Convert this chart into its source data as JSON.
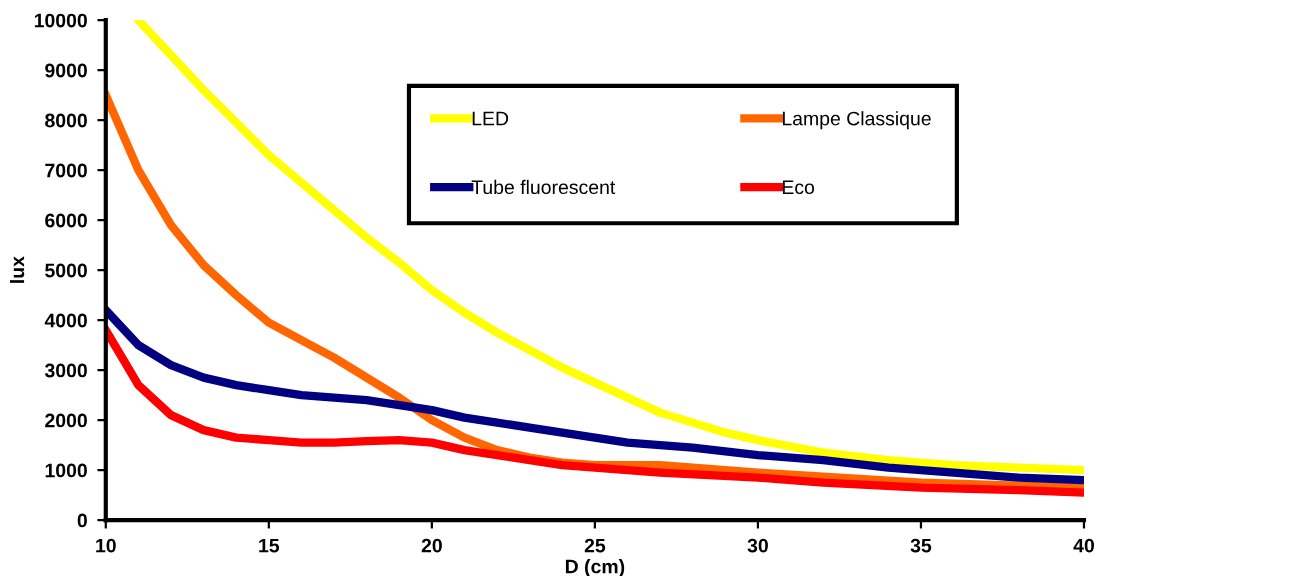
{
  "chart_data": {
    "type": "line",
    "xlabel": "D (cm)",
    "ylabel": "lux",
    "xlim": [
      10,
      40
    ],
    "xticks": [
      10,
      15,
      20,
      25,
      30,
      35,
      40
    ],
    "ylim": [
      0,
      10000
    ],
    "yticks": [
      0,
      1000,
      2000,
      3000,
      4000,
      5000,
      6000,
      7000,
      8000,
      9000,
      10000
    ],
    "grid": false,
    "legend": "top",
    "marker": "none",
    "line_style": "solid",
    "series": [
      {
        "name": "LED",
        "color": "#ffff00",
        "x": [
          11,
          12,
          13,
          14,
          15,
          16,
          17,
          18,
          19,
          20,
          21,
          22,
          23,
          24,
          25,
          26,
          27,
          28,
          29,
          30,
          32,
          34,
          36,
          38,
          40
        ],
        "values": [
          10000,
          9300,
          8600,
          7950,
          7300,
          6750,
          6200,
          5650,
          5150,
          4600,
          4150,
          3750,
          3400,
          3050,
          2750,
          2450,
          2150,
          1950,
          1750,
          1600,
          1350,
          1200,
          1100,
          1050,
          1000
        ]
      },
      {
        "name": "Lampe Classique",
        "color": "#ff6600",
        "x": [
          10,
          11,
          12,
          13,
          14,
          15,
          16,
          17,
          18,
          19,
          20,
          21,
          22,
          23,
          24,
          25,
          27,
          30,
          35,
          40
        ],
        "values": [
          8500,
          7000,
          5900,
          5100,
          4500,
          3950,
          3600,
          3250,
          2850,
          2450,
          2000,
          1650,
          1400,
          1250,
          1150,
          1100,
          1100,
          950,
          750,
          650
        ]
      },
      {
        "name": "Tube fluorescent",
        "color": "#000080",
        "x": [
          10,
          11,
          12,
          13,
          14,
          15,
          16,
          17,
          18,
          19,
          20,
          21,
          22,
          23,
          24,
          25,
          26,
          28,
          30,
          32,
          34,
          36,
          38,
          40
        ],
        "values": [
          4200,
          3500,
          3100,
          2850,
          2700,
          2600,
          2500,
          2450,
          2400,
          2300,
          2200,
          2050,
          1950,
          1850,
          1750,
          1650,
          1550,
          1450,
          1300,
          1200,
          1050,
          950,
          850,
          800
        ]
      },
      {
        "name": "Eco",
        "color": "#ff0000",
        "x": [
          10,
          11,
          12,
          13,
          14,
          15,
          16,
          17,
          18,
          19,
          20,
          21,
          22,
          23,
          24,
          25,
          27,
          30,
          32,
          35,
          38,
          40
        ],
        "values": [
          3800,
          2700,
          2100,
          1800,
          1650,
          1600,
          1550,
          1550,
          1580,
          1600,
          1550,
          1400,
          1300,
          1200,
          1100,
          1050,
          950,
          850,
          750,
          650,
          600,
          550
        ]
      }
    ]
  }
}
